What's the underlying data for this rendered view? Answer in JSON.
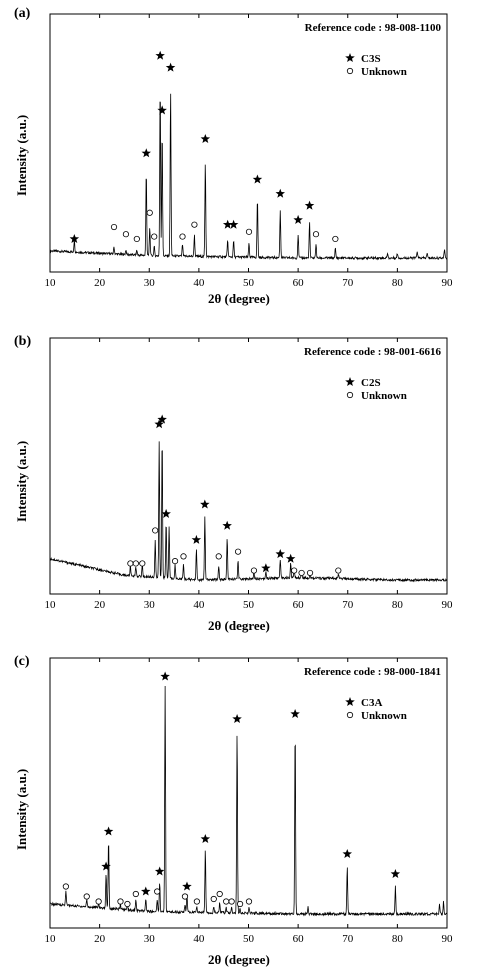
{
  "chart_data": [
    {
      "type": "line",
      "panel_label": "(a)",
      "reference_code": "Reference code : 98-008-1100",
      "xlabel": "2θ (degree)",
      "ylabel": "Intensity (a.u.)",
      "xlim": [
        10,
        90
      ],
      "xticks": [
        "10",
        "20",
        "30",
        "40",
        "50",
        "60",
        "70",
        "80",
        "90"
      ],
      "legend_position": "top-right",
      "series": [
        {
          "name": "C3S",
          "marker": "star",
          "x": [
            14.9,
            29.4,
            32.2,
            32.6,
            34.3,
            41.3,
            45.8,
            47.0,
            51.8,
            56.4,
            60.0,
            62.3
          ],
          "y": [
            8,
            44,
            85,
            62,
            80,
            50,
            14,
            14,
            33,
            27,
            16,
            22
          ]
        },
        {
          "name": "Unknown",
          "marker": "circle",
          "x": [
            22.9,
            25.3,
            27.5,
            30.1,
            31.0,
            36.7,
            39.1,
            50.1,
            63.6,
            67.5
          ],
          "y": [
            13,
            10,
            8,
            19,
            9,
            9,
            14,
            11,
            10,
            8
          ]
        }
      ],
      "trace": {
        "baseline": [
          [
            10,
            3
          ],
          [
            30,
            1
          ],
          [
            60,
            0
          ],
          [
            90,
            0
          ]
        ],
        "peaks": [
          [
            14.9,
            5
          ],
          [
            22.9,
            3
          ],
          [
            25.3,
            2
          ],
          [
            27.5,
            2
          ],
          [
            29.4,
            36
          ],
          [
            30.1,
            12
          ],
          [
            31.0,
            4
          ],
          [
            32.2,
            72
          ],
          [
            32.6,
            53
          ],
          [
            34.3,
            70
          ],
          [
            36.7,
            5
          ],
          [
            39.1,
            9
          ],
          [
            41.3,
            40
          ],
          [
            45.8,
            7
          ],
          [
            47.0,
            7
          ],
          [
            50.1,
            6
          ],
          [
            51.8,
            25
          ],
          [
            56.4,
            20
          ],
          [
            60.0,
            10
          ],
          [
            62.3,
            15
          ],
          [
            63.6,
            6
          ],
          [
            67.5,
            4
          ],
          [
            78.0,
            2
          ],
          [
            80.0,
            2
          ],
          [
            84.0,
            3
          ],
          [
            86.0,
            2
          ],
          [
            89.5,
            4
          ]
        ]
      }
    },
    {
      "type": "line",
      "panel_label": "(b)",
      "reference_code": "Reference code : 98-001-6616",
      "xlabel": "2θ (degree)",
      "ylabel": "Intensity (a.u.)",
      "xlim": [
        10,
        90
      ],
      "xticks": [
        "10",
        "20",
        "30",
        "40",
        "50",
        "60",
        "70",
        "80",
        "90"
      ],
      "legend_position": "top-right",
      "series": [
        {
          "name": "C2S",
          "marker": "star",
          "x": [
            32.0,
            32.6,
            33.4,
            39.5,
            41.2,
            45.7,
            53.5,
            56.4,
            58.5
          ],
          "y": [
            66,
            68,
            28,
            17,
            32,
            23,
            5,
            11,
            9
          ]
        },
        {
          "name": "Unknown",
          "marker": "circle",
          "x": [
            26.2,
            27.3,
            28.6,
            31.2,
            35.2,
            36.9,
            44.0,
            47.9,
            51.1,
            59.2,
            60.7,
            62.4,
            68.1
          ],
          "y": [
            7,
            7,
            7,
            21,
            8,
            10,
            10,
            12,
            4,
            4,
            3,
            3,
            4
          ]
        }
      ],
      "trace": {
        "baseline": [
          [
            10,
            9
          ],
          [
            25,
            2
          ],
          [
            40,
            0
          ],
          [
            60,
            1
          ],
          [
            80,
            0
          ],
          [
            90,
            0
          ]
        ],
        "peaks": [
          [
            26.2,
            4
          ],
          [
            27.3,
            4
          ],
          [
            28.6,
            5
          ],
          [
            31.2,
            16
          ],
          [
            32.0,
            58
          ],
          [
            32.6,
            60
          ],
          [
            33.4,
            24
          ],
          [
            34.0,
            22
          ],
          [
            35.2,
            6
          ],
          [
            36.9,
            6
          ],
          [
            39.5,
            13
          ],
          [
            41.2,
            27
          ],
          [
            44.0,
            6
          ],
          [
            45.7,
            18
          ],
          [
            47.9,
            8
          ],
          [
            51.1,
            3
          ],
          [
            53.5,
            3
          ],
          [
            56.4,
            8
          ],
          [
            58.5,
            6
          ],
          [
            59.2,
            3
          ],
          [
            60.7,
            2
          ],
          [
            62.4,
            2
          ],
          [
            68.1,
            2
          ]
        ]
      }
    },
    {
      "type": "line",
      "panel_label": "(c)",
      "reference_code": "Reference code : 98-000-1841",
      "xlabel": "2θ (degree)",
      "ylabel": "Intensity (a.u.)",
      "xlim": [
        10,
        90
      ],
      "xticks": [
        "10",
        "20",
        "30",
        "40",
        "50",
        "60",
        "70",
        "80",
        "90"
      ],
      "legend_position": "top-right",
      "series": [
        {
          "name": "C3A",
          "marker": "star",
          "x": [
            21.3,
            21.8,
            29.3,
            32.1,
            33.2,
            37.6,
            41.3,
            47.7,
            59.4,
            69.9,
            79.6
          ],
          "y": [
            19,
            33,
            9,
            17,
            95,
            11,
            30,
            78,
            80,
            24,
            16
          ]
        },
        {
          "name": "Unknown",
          "marker": "circle",
          "x": [
            13.2,
            17.4,
            19.8,
            24.2,
            25.6,
            27.3,
            31.6,
            37.2,
            39.6,
            43.0,
            44.2,
            45.5,
            46.6,
            48.3,
            50.1
          ],
          "y": [
            11,
            7,
            5,
            5,
            4,
            8,
            9,
            7,
            5,
            6,
            8,
            5,
            5,
            4,
            5
          ]
        }
      ],
      "trace": {
        "baseline": [
          [
            10,
            4
          ],
          [
            30,
            1
          ],
          [
            60,
            0
          ],
          [
            90,
            0
          ]
        ],
        "peaks": [
          [
            13.2,
            6
          ],
          [
            17.4,
            3
          ],
          [
            19.8,
            2
          ],
          [
            21.3,
            14
          ],
          [
            21.8,
            28
          ],
          [
            24.2,
            2
          ],
          [
            25.6,
            2
          ],
          [
            27.3,
            4
          ],
          [
            29.3,
            5
          ],
          [
            31.6,
            5
          ],
          [
            32.1,
            12
          ],
          [
            33.2,
            90
          ],
          [
            37.2,
            3
          ],
          [
            37.6,
            7
          ],
          [
            39.6,
            2
          ],
          [
            41.3,
            25
          ],
          [
            43.0,
            2
          ],
          [
            44.2,
            4
          ],
          [
            45.5,
            2
          ],
          [
            46.6,
            2
          ],
          [
            47.7,
            73
          ],
          [
            48.3,
            2
          ],
          [
            50.1,
            2
          ],
          [
            59.4,
            75
          ],
          [
            62.0,
            3
          ],
          [
            69.9,
            19
          ],
          [
            79.6,
            11
          ],
          [
            88.5,
            4
          ],
          [
            89.3,
            5
          ]
        ]
      }
    }
  ]
}
